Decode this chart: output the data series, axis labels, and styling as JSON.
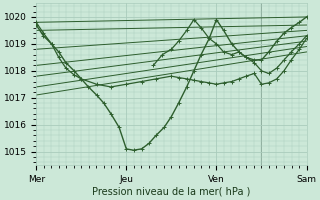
{
  "xlabel": "Pression niveau de la mer( hPa )",
  "bg_color": "#cce8d8",
  "grid_color": "#aaccbc",
  "line_color": "#2d5e2d",
  "xlim": [
    0,
    3.0
  ],
  "ylim": [
    1014.5,
    1020.5
  ],
  "yticks": [
    1015,
    1016,
    1017,
    1018,
    1019,
    1020
  ],
  "xtick_labels": [
    "Mer",
    "Jeu",
    "Ven",
    "Sam"
  ],
  "xtick_positions": [
    0,
    1,
    2,
    3
  ],
  "series": [
    {
      "x": [
        0.0,
        0.08,
        0.17,
        0.25,
        0.33,
        0.42,
        0.5,
        0.58,
        0.67,
        0.75,
        0.83,
        0.92,
        1.0,
        1.08,
        1.17,
        1.25,
        1.33,
        1.42,
        1.5,
        1.58,
        1.67,
        1.75,
        1.83,
        1.92,
        2.0,
        2.08,
        2.17,
        2.25,
        2.33,
        2.42,
        2.5,
        2.58,
        2.67,
        2.75,
        2.83,
        2.92,
        3.0
      ],
      "y": [
        1019.7,
        1019.3,
        1019.0,
        1018.7,
        1018.3,
        1018.0,
        1017.7,
        1017.4,
        1017.1,
        1016.8,
        1016.4,
        1015.9,
        1015.1,
        1015.05,
        1015.1,
        1015.3,
        1015.6,
        1015.9,
        1016.3,
        1016.8,
        1017.4,
        1018.0,
        1018.6,
        1019.2,
        1019.9,
        1019.5,
        1019.0,
        1018.7,
        1018.5,
        1018.4,
        1018.4,
        1018.7,
        1019.1,
        1019.4,
        1019.6,
        1019.8,
        1020.0
      ],
      "marker": "+",
      "lw": 1.0
    },
    {
      "x": [
        0.0,
        3.0
      ],
      "y": [
        1019.8,
        1020.0
      ],
      "marker": null,
      "lw": 0.7
    },
    {
      "x": [
        0.0,
        3.0
      ],
      "y": [
        1019.5,
        1019.7
      ],
      "marker": null,
      "lw": 0.7
    },
    {
      "x": [
        0.0,
        3.0
      ],
      "y": [
        1018.8,
        1019.5
      ],
      "marker": null,
      "lw": 0.7
    },
    {
      "x": [
        0.0,
        3.0
      ],
      "y": [
        1018.2,
        1019.3
      ],
      "marker": null,
      "lw": 0.7
    },
    {
      "x": [
        0.0,
        3.0
      ],
      "y": [
        1017.8,
        1019.1
      ],
      "marker": null,
      "lw": 0.7
    },
    {
      "x": [
        0.0,
        3.0
      ],
      "y": [
        1017.4,
        1018.9
      ],
      "marker": null,
      "lw": 0.7
    },
    {
      "x": [
        0.0,
        3.0
      ],
      "y": [
        1017.1,
        1018.7
      ],
      "marker": null,
      "lw": 0.7
    },
    {
      "x": [
        0.0,
        0.08,
        0.17,
        0.25,
        0.33,
        0.42,
        0.5,
        0.67,
        0.83,
        1.0,
        1.17,
        1.33,
        1.5,
        1.58,
        1.67,
        1.75,
        1.83,
        1.92,
        2.0,
        2.08,
        2.17,
        2.25,
        2.33,
        2.42,
        2.5,
        2.58,
        2.67,
        2.75,
        2.83,
        2.92,
        3.0
      ],
      "y": [
        1019.8,
        1019.4,
        1019.0,
        1018.5,
        1018.1,
        1017.85,
        1017.7,
        1017.5,
        1017.4,
        1017.5,
        1017.6,
        1017.7,
        1017.8,
        1017.75,
        1017.7,
        1017.65,
        1017.6,
        1017.55,
        1017.5,
        1017.55,
        1017.6,
        1017.7,
        1017.8,
        1017.9,
        1017.5,
        1017.55,
        1017.7,
        1018.0,
        1018.4,
        1018.8,
        1019.2
      ],
      "marker": "+",
      "lw": 0.9
    },
    {
      "x": [
        1.3,
        1.4,
        1.5,
        1.58,
        1.67,
        1.75,
        1.83,
        1.92,
        2.0,
        2.08,
        2.17,
        2.25,
        2.33,
        2.42,
        2.5,
        2.58,
        2.67,
        2.75,
        2.83,
        2.92,
        3.0
      ],
      "y": [
        1018.2,
        1018.6,
        1018.8,
        1019.1,
        1019.5,
        1019.9,
        1019.6,
        1019.2,
        1019.0,
        1018.7,
        1018.6,
        1018.7,
        1018.5,
        1018.3,
        1018.0,
        1017.9,
        1018.1,
        1018.4,
        1018.7,
        1019.0,
        1019.3
      ],
      "marker": "+",
      "lw": 0.9
    }
  ],
  "vline_x": 2.5,
  "vline_color": "#7a9a8a"
}
